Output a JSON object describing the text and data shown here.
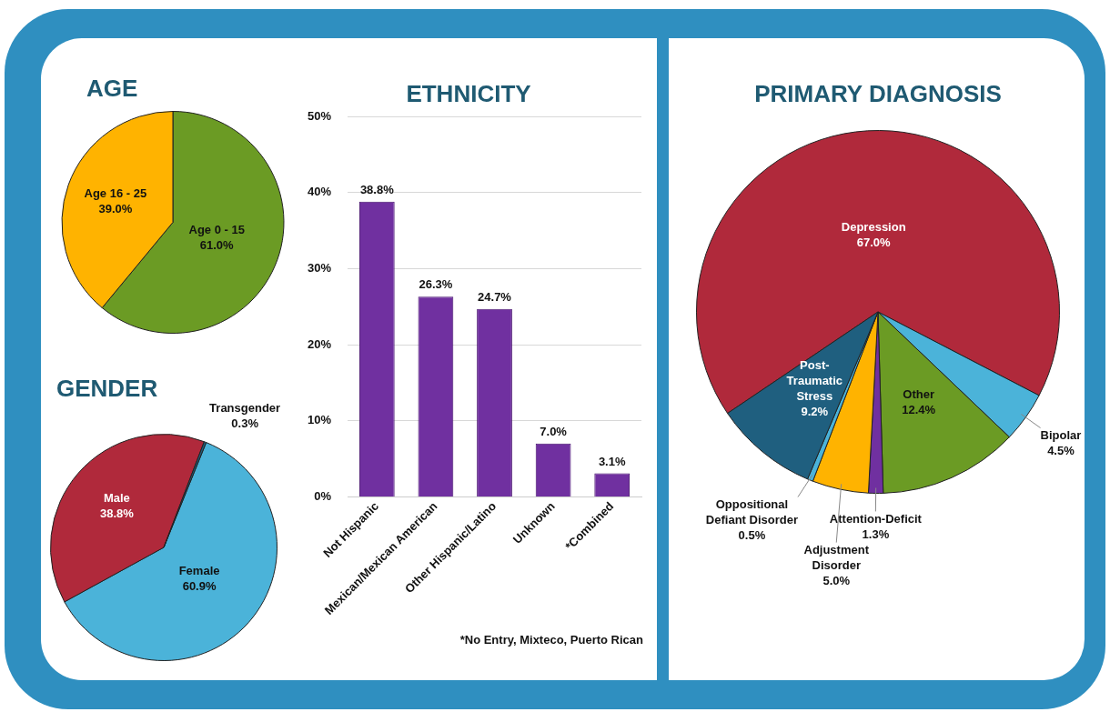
{
  "chart_data": [
    {
      "type": "pie",
      "title": "AGE",
      "categories": [
        "Age 0 - 15",
        "Age 16 - 25"
      ],
      "values": [
        61.0,
        39.0
      ],
      "colors": [
        "#6b9b24",
        "#ffb300"
      ],
      "value_labels": [
        "61.0%",
        "39.0%"
      ]
    },
    {
      "type": "pie",
      "title": "GENDER",
      "categories": [
        "Female",
        "Male",
        "Transgender"
      ],
      "values": [
        60.9,
        38.8,
        0.3
      ],
      "colors": [
        "#4bb3d9",
        "#b0293b",
        "#1f5f7f"
      ],
      "value_labels": [
        "60.9%",
        "38.8%",
        "0.3%"
      ]
    },
    {
      "type": "bar",
      "title": "ETHNICITY",
      "categories": [
        "Not Hispanic",
        "Mexican/Mexican American",
        "Other Hispanic/Latino",
        "Unknown",
        "*Combined"
      ],
      "values": [
        38.8,
        26.3,
        24.7,
        7.0,
        3.1
      ],
      "color": "#7030a0",
      "value_labels": [
        "38.8%",
        "26.3%",
        "24.7%",
        "7.0%",
        "3.1%"
      ],
      "ylim": [
        0,
        50
      ],
      "yticks": [
        {
          "value": 0,
          "label": "0%"
        },
        {
          "value": 10,
          "label": "10%"
        },
        {
          "value": 20,
          "label": "20%"
        },
        {
          "value": 30,
          "label": "30%"
        },
        {
          "value": 40,
          "label": "40%"
        },
        {
          "value": 50,
          "label": "50%"
        }
      ],
      "grid": "y",
      "annotations": [
        "*No Entry, Mixteco, Puerto Rican"
      ]
    },
    {
      "type": "pie",
      "title": "PRIMARY DIAGNOSIS",
      "categories": [
        "Depression",
        "Bipolar",
        "Other",
        "Attention-Deficit",
        "Adjustment Disorder",
        "Oppositional Defiant Disorder",
        "Post-Traumatic Stress"
      ],
      "values": [
        67.0,
        4.5,
        12.4,
        1.3,
        5.0,
        0.5,
        9.2
      ],
      "colors": [
        "#b0293b",
        "#4bb3d9",
        "#6b9b24",
        "#7030a0",
        "#ffb300",
        "#4bb3d9",
        "#1f5f7f"
      ],
      "value_labels": [
        "67.0%",
        "4.5%",
        "12.4%",
        "1.3%",
        "5.0%",
        "0.5%",
        "9.2%"
      ]
    }
  ]
}
